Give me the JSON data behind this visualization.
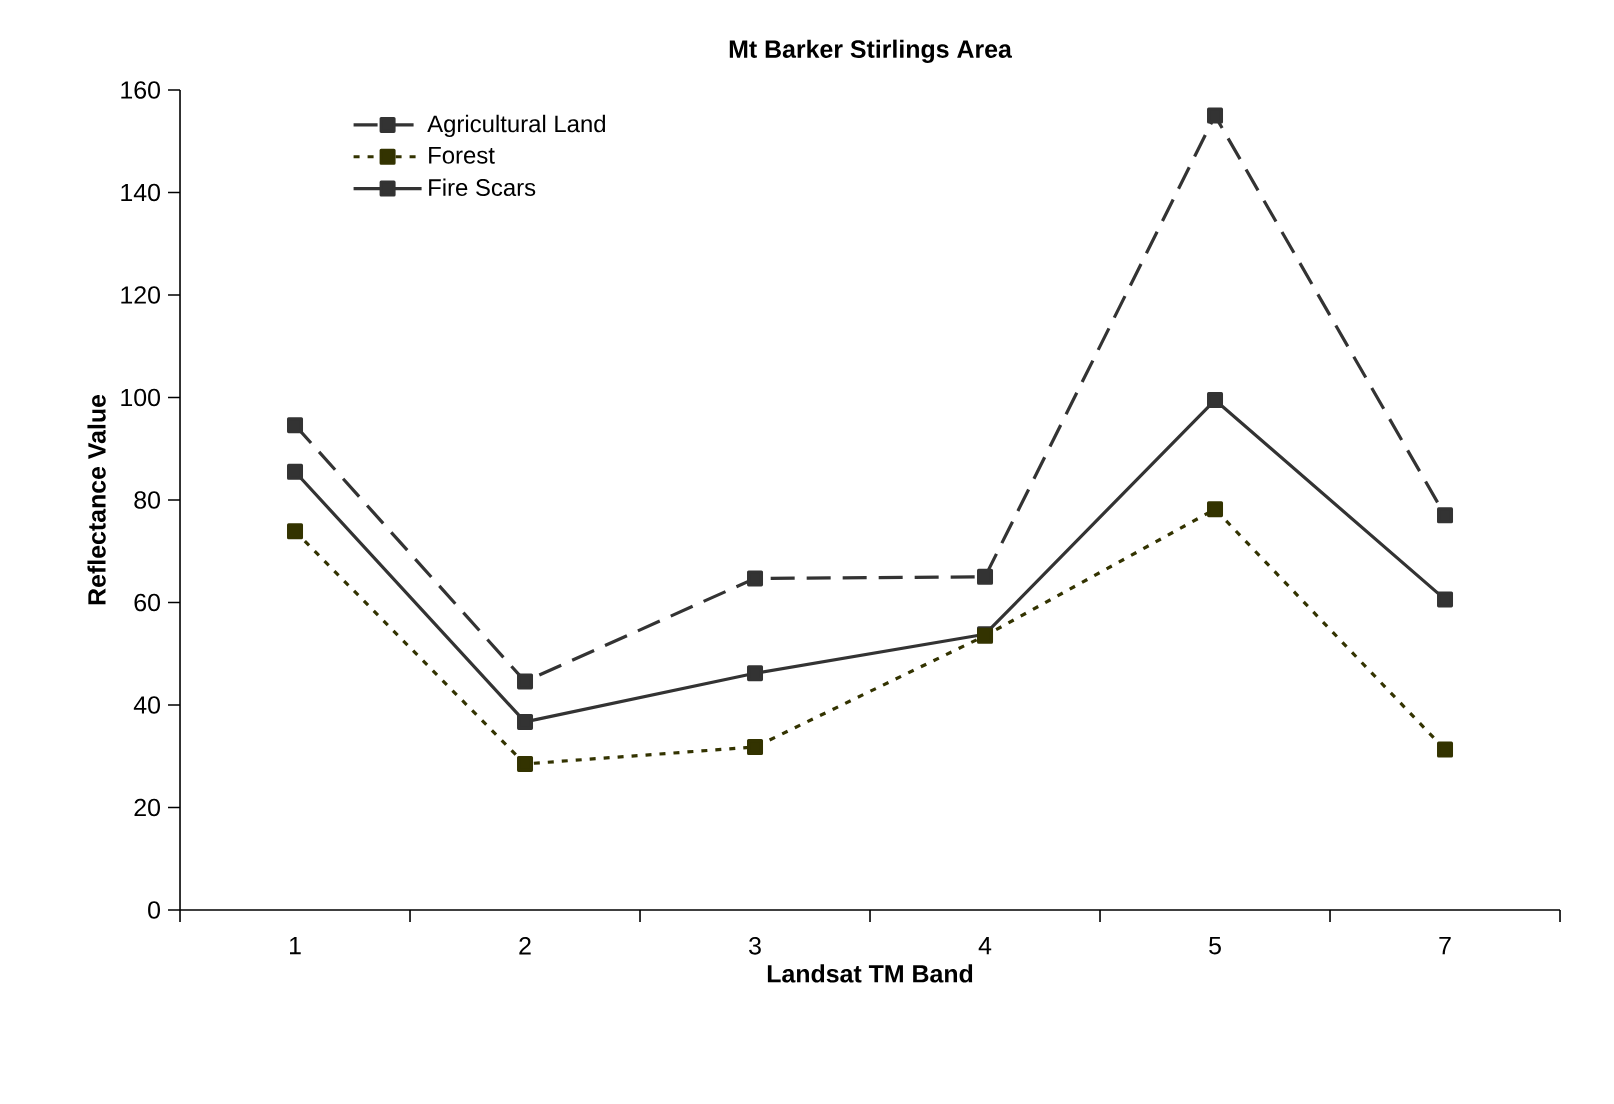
{
  "chart_data": {
    "type": "line",
    "title": "Mt Barker Stirlings Area",
    "xlabel": "Landsat TM Band",
    "ylabel": "Reflectance Value",
    "categories": [
      "1",
      "2",
      "3",
      "4",
      "5",
      "7"
    ],
    "series": [
      {
        "name": "Agricultural Land",
        "color": "#333333",
        "line_style": "dashed",
        "values": [
          94.6,
          44.6,
          64.7,
          65,
          155,
          77
        ]
      },
      {
        "name": "Forest",
        "color": "#333300",
        "line_style": "dotted",
        "values": [
          73.9,
          28.5,
          31.8,
          53.5,
          78.2,
          31.3
        ]
      },
      {
        "name": "Fire Scars",
        "color": "#333333",
        "line_style": "solid",
        "values": [
          85.5,
          36.7,
          46.2,
          53.8,
          99.5,
          60.6
        ]
      }
    ],
    "ylim": [
      0,
      160
    ],
    "yticks": [
      0,
      20,
      40,
      60,
      80,
      100,
      120,
      140,
      160
    ],
    "marker": "square",
    "legend": "top left",
    "grid": false
  }
}
